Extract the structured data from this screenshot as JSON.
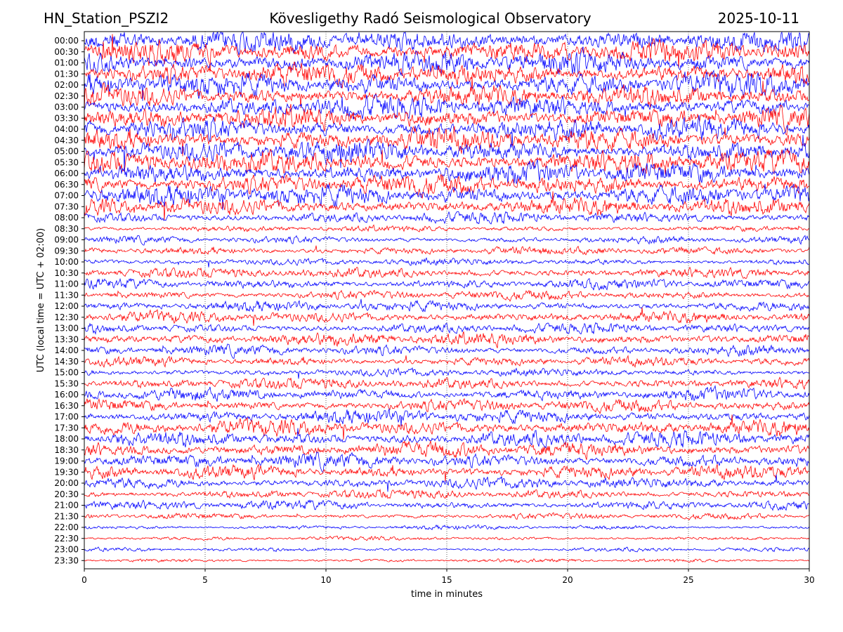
{
  "header": {
    "station": "HN_Station_PSZI2",
    "observatory": "Kövesligethy Radó Seismological Observatory",
    "date": "2025-10-11"
  },
  "chart_data": {
    "type": "line",
    "title": "Kövesligethy Radó Seismological Observatory",
    "xlabel": "time in minutes",
    "ylabel": "UTC (local time = UTC + 02:00)",
    "xlim": [
      0,
      30
    ],
    "xticks": [
      0,
      5,
      10,
      15,
      20,
      25,
      30
    ],
    "vertical_grid": "dotted",
    "trace_colors": [
      "#0000ff",
      "#ff0000"
    ],
    "rows": [
      {
        "label": "00:00",
        "activity": 0.95
      },
      {
        "label": "00:30",
        "activity": 0.95
      },
      {
        "label": "01:00",
        "activity": 0.95
      },
      {
        "label": "01:30",
        "activity": 0.95
      },
      {
        "label": "02:00",
        "activity": 0.95
      },
      {
        "label": "02:30",
        "activity": 0.9
      },
      {
        "label": "03:00",
        "activity": 0.9
      },
      {
        "label": "03:30",
        "activity": 0.9
      },
      {
        "label": "04:00",
        "activity": 0.9
      },
      {
        "label": "04:30",
        "activity": 0.95
      },
      {
        "label": "05:00",
        "activity": 0.95
      },
      {
        "label": "05:30",
        "activity": 0.95
      },
      {
        "label": "06:00",
        "activity": 0.9
      },
      {
        "label": "06:30",
        "activity": 0.85
      },
      {
        "label": "07:00",
        "activity": 0.85
      },
      {
        "label": "07:30",
        "activity": 0.7
      },
      {
        "label": "08:00",
        "activity": 0.4
      },
      {
        "label": "08:30",
        "activity": 0.15
      },
      {
        "label": "09:00",
        "activity": 0.2
      },
      {
        "label": "09:30",
        "activity": 0.25
      },
      {
        "label": "10:00",
        "activity": 0.2
      },
      {
        "label": "10:30",
        "activity": 0.35
      },
      {
        "label": "11:00",
        "activity": 0.35
      },
      {
        "label": "11:30",
        "activity": 0.3
      },
      {
        "label": "12:00",
        "activity": 0.35
      },
      {
        "label": "12:30",
        "activity": 0.4
      },
      {
        "label": "13:00",
        "activity": 0.35
      },
      {
        "label": "13:30",
        "activity": 0.5
      },
      {
        "label": "14:00",
        "activity": 0.35
      },
      {
        "label": "14:30",
        "activity": 0.3
      },
      {
        "label": "15:00",
        "activity": 0.25
      },
      {
        "label": "15:30",
        "activity": 0.4
      },
      {
        "label": "16:00",
        "activity": 0.45
      },
      {
        "label": "16:30",
        "activity": 0.45
      },
      {
        "label": "17:00",
        "activity": 0.5
      },
      {
        "label": "17:30",
        "activity": 0.6
      },
      {
        "label": "18:00",
        "activity": 0.6
      },
      {
        "label": "18:30",
        "activity": 0.6
      },
      {
        "label": "19:00",
        "activity": 0.55
      },
      {
        "label": "19:30",
        "activity": 0.5
      },
      {
        "label": "20:00",
        "activity": 0.4
      },
      {
        "label": "20:30",
        "activity": 0.3
      },
      {
        "label": "21:00",
        "activity": 0.3
      },
      {
        "label": "21:30",
        "activity": 0.15
      },
      {
        "label": "22:00",
        "activity": 0.07
      },
      {
        "label": "22:30",
        "activity": 0.05
      },
      {
        "label": "23:00",
        "activity": 0.05
      },
      {
        "label": "23:30",
        "activity": 0.04
      }
    ]
  }
}
